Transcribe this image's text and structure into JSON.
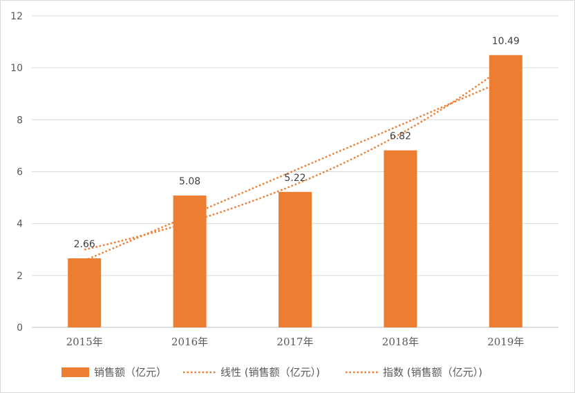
{
  "chart_data": {
    "type": "bar",
    "categories": [
      "2015年",
      "2016年",
      "2017年",
      "2018年",
      "2019年"
    ],
    "series": [
      {
        "name": "销售额（亿元）",
        "values": [
          2.66,
          5.08,
          5.22,
          6.82,
          10.49
        ]
      }
    ],
    "data_labels": [
      "2.66",
      "5.08",
      "5.22",
      "6.82",
      "10.49"
    ],
    "trendlines": [
      {
        "name": "线性 (销售额（亿元）)",
        "kind": "linear",
        "style": "dotted"
      },
      {
        "name": "指数 (销售额（亿元）)",
        "kind": "exponential",
        "style": "dotted"
      }
    ],
    "yticks": [
      "0",
      "2",
      "4",
      "6",
      "8",
      "10",
      "12"
    ],
    "ylim": [
      0,
      12
    ],
    "grid": true,
    "legend_position": "bottom",
    "title": "",
    "xlabel": "",
    "ylabel": ""
  },
  "colors": {
    "bar": "#ed7d31",
    "trend": "#ed7d31",
    "grid": "#d9d9d9",
    "axis": "#bfbfbf"
  }
}
